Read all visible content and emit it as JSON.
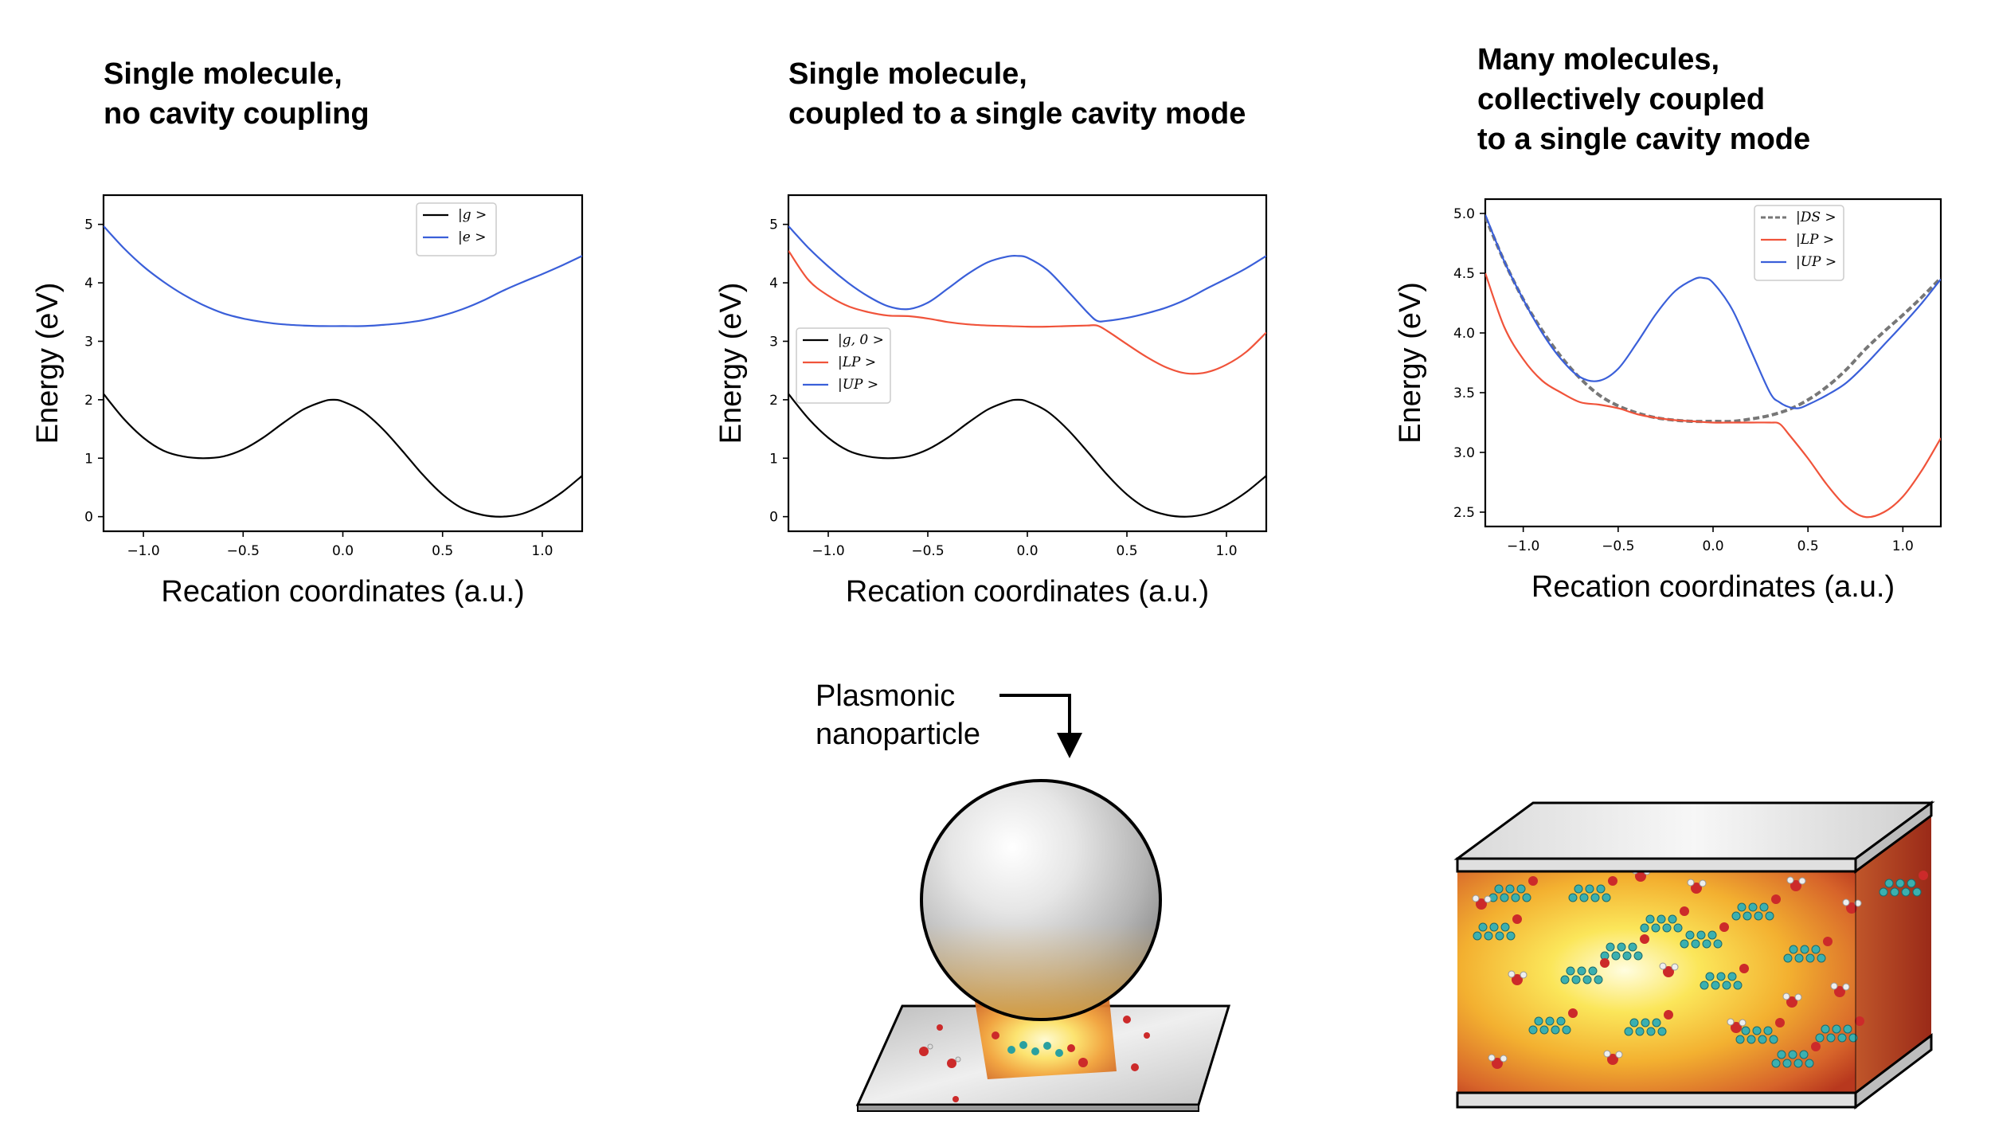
{
  "panels": [
    {
      "title_lines": [
        "Single molecule,",
        "no cavity coupling"
      ]
    },
    {
      "title_lines": [
        "Single molecule,",
        "coupled to a single cavity mode"
      ]
    },
    {
      "title_lines": [
        "Many molecules,",
        "collectively coupled",
        "to a single cavity mode"
      ]
    }
  ],
  "annotation": {
    "label_line1": "Plasmonic",
    "label_line2": "nanoparticle"
  },
  "colors": {
    "black": "#000000",
    "blue": "#3a5fd9",
    "red": "#f0533a",
    "gray": "#777777"
  },
  "chart_data": [
    {
      "type": "line",
      "xlabel": "Recation coordinates (a.u.)",
      "ylabel": "Energy (eV)",
      "xlim": [
        -1.2,
        1.2
      ],
      "ylim": [
        -0.25,
        5.5
      ],
      "xticks": [
        "−1.0",
        "−0.5",
        "0.0",
        "0.5",
        "1.0"
      ],
      "xtick_values": [
        -1.0,
        -0.5,
        0.0,
        0.5,
        1.0
      ],
      "yticks": [
        "0",
        "1",
        "2",
        "3",
        "4",
        "5"
      ],
      "ytick_values": [
        0,
        1,
        2,
        3,
        4,
        5
      ],
      "legend_position": "top-right",
      "series": [
        {
          "name": "|g >",
          "color": "#000000",
          "dashed": false,
          "x": [
            -1.2,
            -1.1,
            -1.0,
            -0.9,
            -0.8,
            -0.7,
            -0.6,
            -0.5,
            -0.4,
            -0.3,
            -0.2,
            -0.1,
            -0.05,
            0.0,
            0.1,
            0.2,
            0.3,
            0.4,
            0.5,
            0.6,
            0.7,
            0.8,
            0.9,
            1.0,
            1.1,
            1.2
          ],
          "values": [
            2.1,
            1.68,
            1.35,
            1.13,
            1.03,
            1.0,
            1.03,
            1.15,
            1.35,
            1.6,
            1.83,
            1.97,
            2.0,
            1.97,
            1.8,
            1.5,
            1.12,
            0.72,
            0.38,
            0.14,
            0.03,
            0.0,
            0.05,
            0.2,
            0.42,
            0.7
          ]
        },
        {
          "name": "|e >",
          "color": "#3a5fd9",
          "dashed": false,
          "x": [
            -1.2,
            -1.1,
            -1.0,
            -0.9,
            -0.8,
            -0.7,
            -0.6,
            -0.5,
            -0.4,
            -0.3,
            -0.2,
            -0.1,
            0.0,
            0.1,
            0.2,
            0.3,
            0.4,
            0.5,
            0.6,
            0.7,
            0.8,
            0.9,
            1.0,
            1.1,
            1.2
          ],
          "values": [
            4.97,
            4.6,
            4.28,
            4.02,
            3.8,
            3.62,
            3.48,
            3.39,
            3.33,
            3.29,
            3.27,
            3.26,
            3.26,
            3.26,
            3.28,
            3.31,
            3.36,
            3.44,
            3.55,
            3.69,
            3.86,
            4.01,
            4.15,
            4.3,
            4.46
          ]
        }
      ]
    },
    {
      "type": "line",
      "xlabel": "Recation coordinates (a.u.)",
      "ylabel": "Energy (eV)",
      "xlim": [
        -1.2,
        1.2
      ],
      "ylim": [
        -0.25,
        5.5
      ],
      "xticks": [
        "−1.0",
        "−0.5",
        "0.0",
        "0.5",
        "1.0"
      ],
      "xtick_values": [
        -1.0,
        -0.5,
        0.0,
        0.5,
        1.0
      ],
      "yticks": [
        "0",
        "1",
        "2",
        "3",
        "4",
        "5"
      ],
      "ytick_values": [
        0,
        1,
        2,
        3,
        4,
        5
      ],
      "legend_position": "center-left",
      "series": [
        {
          "name": "|g, 0 >",
          "color": "#000000",
          "dashed": false,
          "x": [
            -1.2,
            -1.1,
            -1.0,
            -0.9,
            -0.8,
            -0.7,
            -0.6,
            -0.5,
            -0.4,
            -0.3,
            -0.2,
            -0.1,
            -0.05,
            0.0,
            0.1,
            0.2,
            0.3,
            0.4,
            0.5,
            0.6,
            0.7,
            0.8,
            0.9,
            1.0,
            1.1,
            1.2
          ],
          "values": [
            2.1,
            1.68,
            1.35,
            1.13,
            1.03,
            1.0,
            1.03,
            1.15,
            1.35,
            1.6,
            1.83,
            1.97,
            2.0,
            1.97,
            1.8,
            1.5,
            1.12,
            0.72,
            0.38,
            0.14,
            0.03,
            0.0,
            0.05,
            0.2,
            0.42,
            0.7
          ]
        },
        {
          "name": "|LP >",
          "color": "#f0533a",
          "dashed": false,
          "x": [
            -1.2,
            -1.1,
            -1.0,
            -0.9,
            -0.8,
            -0.7,
            -0.6,
            -0.5,
            -0.4,
            -0.3,
            -0.2,
            -0.1,
            0.0,
            0.1,
            0.2,
            0.3,
            0.35,
            0.4,
            0.5,
            0.6,
            0.7,
            0.8,
            0.9,
            1.0,
            1.1,
            1.2
          ],
          "values": [
            4.55,
            4.05,
            3.78,
            3.6,
            3.5,
            3.44,
            3.43,
            3.39,
            3.33,
            3.29,
            3.27,
            3.26,
            3.25,
            3.25,
            3.26,
            3.27,
            3.27,
            3.18,
            2.95,
            2.73,
            2.55,
            2.45,
            2.47,
            2.6,
            2.82,
            3.15
          ]
        },
        {
          "name": "|UP >",
          "color": "#3a5fd9",
          "dashed": false,
          "x": [
            -1.2,
            -1.1,
            -1.0,
            -0.9,
            -0.8,
            -0.7,
            -0.6,
            -0.5,
            -0.4,
            -0.3,
            -0.2,
            -0.1,
            -0.05,
            0.0,
            0.1,
            0.2,
            0.3,
            0.35,
            0.4,
            0.5,
            0.6,
            0.7,
            0.8,
            0.9,
            1.0,
            1.1,
            1.2
          ],
          "values": [
            4.97,
            4.6,
            4.28,
            4.0,
            3.77,
            3.6,
            3.55,
            3.66,
            3.9,
            4.15,
            4.35,
            4.45,
            4.46,
            4.43,
            4.22,
            3.87,
            3.5,
            3.35,
            3.35,
            3.4,
            3.48,
            3.58,
            3.72,
            3.9,
            4.07,
            4.25,
            4.46
          ]
        }
      ]
    },
    {
      "type": "line",
      "xlabel": "Recation coordinates (a.u.)",
      "ylabel": "Energy (eV)",
      "xlim": [
        -1.2,
        1.2
      ],
      "ylim": [
        2.38,
        5.12
      ],
      "xticks": [
        "−1.0",
        "−0.5",
        "0.0",
        "0.5",
        "1.0"
      ],
      "xtick_values": [
        -1.0,
        -0.5,
        0.0,
        0.5,
        1.0
      ],
      "yticks": [
        "2.5",
        "3.0",
        "3.5",
        "4.0",
        "4.5",
        "5.0"
      ],
      "ytick_values": [
        2.5,
        3.0,
        3.5,
        4.0,
        4.5,
        5.0
      ],
      "legend_position": "top-right",
      "series": [
        {
          "name": "|DS >",
          "color": "#777777",
          "dashed": true,
          "x": [
            -1.2,
            -1.1,
            -1.0,
            -0.9,
            -0.8,
            -0.7,
            -0.6,
            -0.5,
            -0.4,
            -0.3,
            -0.2,
            -0.1,
            0.0,
            0.1,
            0.2,
            0.3,
            0.4,
            0.5,
            0.6,
            0.7,
            0.8,
            0.9,
            1.0,
            1.1,
            1.2
          ],
          "values": [
            4.97,
            4.6,
            4.28,
            4.02,
            3.8,
            3.62,
            3.48,
            3.39,
            3.33,
            3.29,
            3.27,
            3.26,
            3.26,
            3.26,
            3.28,
            3.31,
            3.36,
            3.44,
            3.55,
            3.69,
            3.86,
            4.01,
            4.15,
            4.3,
            4.46
          ]
        },
        {
          "name": "|LP >",
          "color": "#f0533a",
          "dashed": false,
          "x": [
            -1.2,
            -1.1,
            -1.0,
            -0.9,
            -0.8,
            -0.7,
            -0.6,
            -0.5,
            -0.4,
            -0.3,
            -0.2,
            -0.1,
            0.0,
            0.1,
            0.2,
            0.3,
            0.35,
            0.4,
            0.5,
            0.6,
            0.7,
            0.8,
            0.9,
            1.0,
            1.1,
            1.2
          ],
          "values": [
            4.5,
            4.05,
            3.78,
            3.6,
            3.5,
            3.42,
            3.4,
            3.37,
            3.32,
            3.29,
            3.27,
            3.26,
            3.25,
            3.25,
            3.25,
            3.25,
            3.24,
            3.15,
            2.95,
            2.73,
            2.55,
            2.46,
            2.5,
            2.63,
            2.85,
            3.12
          ]
        },
        {
          "name": "|UP >",
          "color": "#3a5fd9",
          "dashed": false,
          "x": [
            -1.2,
            -1.1,
            -1.0,
            -0.9,
            -0.8,
            -0.7,
            -0.6,
            -0.5,
            -0.4,
            -0.3,
            -0.2,
            -0.1,
            -0.05,
            0.0,
            0.1,
            0.2,
            0.3,
            0.35,
            0.4,
            0.45,
            0.5,
            0.6,
            0.7,
            0.8,
            0.9,
            1.0,
            1.1,
            1.2
          ],
          "values": [
            4.99,
            4.6,
            4.28,
            4.0,
            3.78,
            3.63,
            3.6,
            3.7,
            3.92,
            4.16,
            4.35,
            4.45,
            4.46,
            4.42,
            4.2,
            3.85,
            3.5,
            3.42,
            3.38,
            3.37,
            3.4,
            3.48,
            3.58,
            3.73,
            3.9,
            4.07,
            4.25,
            4.45
          ]
        }
      ]
    }
  ]
}
